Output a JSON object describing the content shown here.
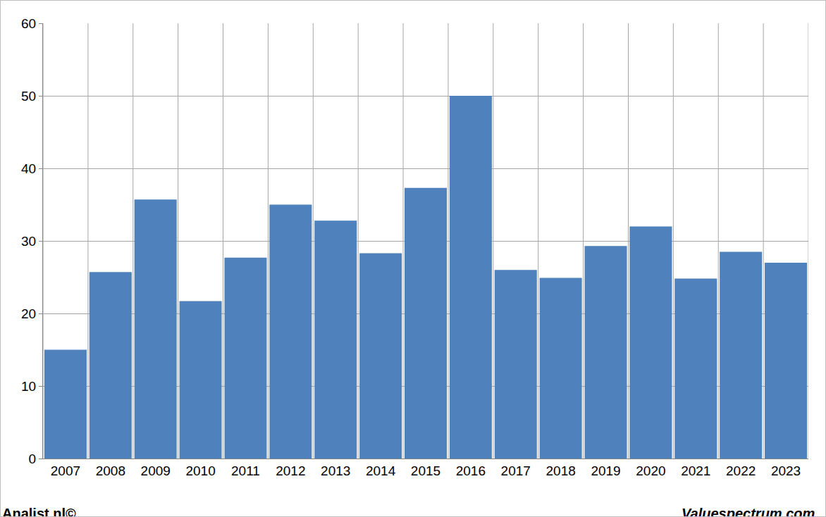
{
  "chart_data": {
    "type": "bar",
    "categories": [
      "2007",
      "2008",
      "2009",
      "2010",
      "2011",
      "2012",
      "2013",
      "2014",
      "2015",
      "2016",
      "2017",
      "2018",
      "2019",
      "2020",
      "2021",
      "2022",
      "2023"
    ],
    "values": [
      15,
      25.7,
      35.7,
      21.7,
      27.7,
      35,
      32.8,
      28.3,
      37.3,
      50,
      26,
      24.9,
      29.3,
      32,
      24.8,
      28.5,
      27
    ],
    "color": "#4f81bd",
    "ylim": [
      0,
      60
    ],
    "yticks": [
      0,
      10,
      20,
      30,
      40,
      50,
      60
    ],
    "grid": true,
    "annotations": [
      "Analist.nl©",
      "Valuespectrum.com"
    ]
  }
}
